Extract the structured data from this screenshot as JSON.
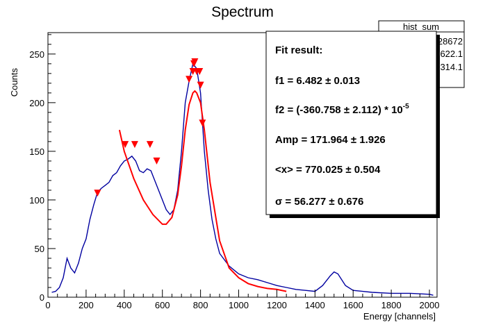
{
  "chart_data": {
    "type": "line",
    "title": "Spectrum",
    "xlabel": "Energy [channels]",
    "ylabel": "Counts",
    "xlim": [
      0,
      2040
    ],
    "ylim": [
      0,
      272
    ],
    "x_ticks": [
      0,
      200,
      400,
      600,
      800,
      1000,
      1200,
      1400,
      1600,
      1800,
      2000
    ],
    "y_ticks": [
      0,
      50,
      100,
      150,
      200,
      250
    ],
    "grid": false,
    "colors": {
      "histogram": "#0000a0",
      "fit": "#ff0000",
      "markers": "#ff0000"
    },
    "stats_box": {
      "name": "hist_sum",
      "values": [
        "28672",
        "622.1",
        "314.1"
      ]
    },
    "fit_box": {
      "title": "Fit result:",
      "lines": [
        {
          "lhs": "f1 = 6.482 ",
          "pm": "± 0.013",
          "rest": "",
          "sup": ""
        },
        {
          "lhs": "f2 = (-360.758 ",
          "pm": "± 2.112) * 10",
          "rest": "",
          "sup": "-5"
        },
        {
          "lhs": "Amp = 171.964 ",
          "pm": "± 1.926",
          "rest": "",
          "sup": ""
        },
        {
          "lhs": "<x> = 770.025 ",
          "pm": "± 0.504",
          "rest": "",
          "sup": ""
        },
        {
          "lhs": "σ = 56.277 ",
          "pm": "± 0.676",
          "rest": "",
          "sup": ""
        }
      ]
    },
    "histogram_envelope": {
      "x": [
        20,
        40,
        60,
        80,
        100,
        120,
        140,
        160,
        180,
        200,
        220,
        240,
        260,
        280,
        300,
        320,
        340,
        360,
        380,
        400,
        420,
        440,
        460,
        480,
        500,
        520,
        540,
        560,
        580,
        600,
        620,
        640,
        660,
        680,
        700,
        720,
        740,
        760,
        780,
        800,
        820,
        840,
        860,
        880,
        900,
        950,
        1000,
        1050,
        1100,
        1150,
        1200,
        1250,
        1300,
        1350,
        1400,
        1440,
        1480,
        1500,
        1520,
        1560,
        1600,
        1650,
        1700,
        1800,
        1900,
        2000,
        2020
      ],
      "y": [
        5,
        6,
        10,
        20,
        40,
        30,
        25,
        35,
        50,
        60,
        80,
        95,
        108,
        112,
        115,
        118,
        125,
        128,
        135,
        140,
        142,
        145,
        140,
        130,
        128,
        132,
        130,
        120,
        110,
        100,
        90,
        85,
        90,
        110,
        150,
        200,
        222,
        240,
        235,
        210,
        150,
        110,
        80,
        60,
        45,
        32,
        24,
        20,
        18,
        15,
        12,
        10,
        8,
        7,
        6,
        12,
        22,
        26,
        24,
        12,
        7,
        6,
        5,
        4,
        4,
        3,
        2
      ]
    },
    "fit_curve": {
      "x": [
        375,
        400,
        450,
        500,
        550,
        600,
        620,
        650,
        680,
        700,
        720,
        740,
        760,
        770,
        780,
        800,
        820,
        850,
        900,
        950,
        1000,
        1050,
        1100,
        1150,
        1200,
        1250
      ],
      "y": [
        172,
        150,
        122,
        100,
        85,
        75,
        75,
        82,
        105,
        135,
        172,
        198,
        210,
        212,
        210,
        200,
        172,
        118,
        58,
        30,
        20,
        14,
        11,
        9,
        8,
        6
      ]
    },
    "markers": {
      "x": [
        260,
        405,
        455,
        535,
        570,
        740,
        760,
        765,
        770,
        780,
        795,
        800,
        810
      ],
      "y": [
        107,
        157,
        157,
        157,
        140,
        224,
        232,
        240,
        242,
        232,
        232,
        218,
        179
      ]
    }
  }
}
